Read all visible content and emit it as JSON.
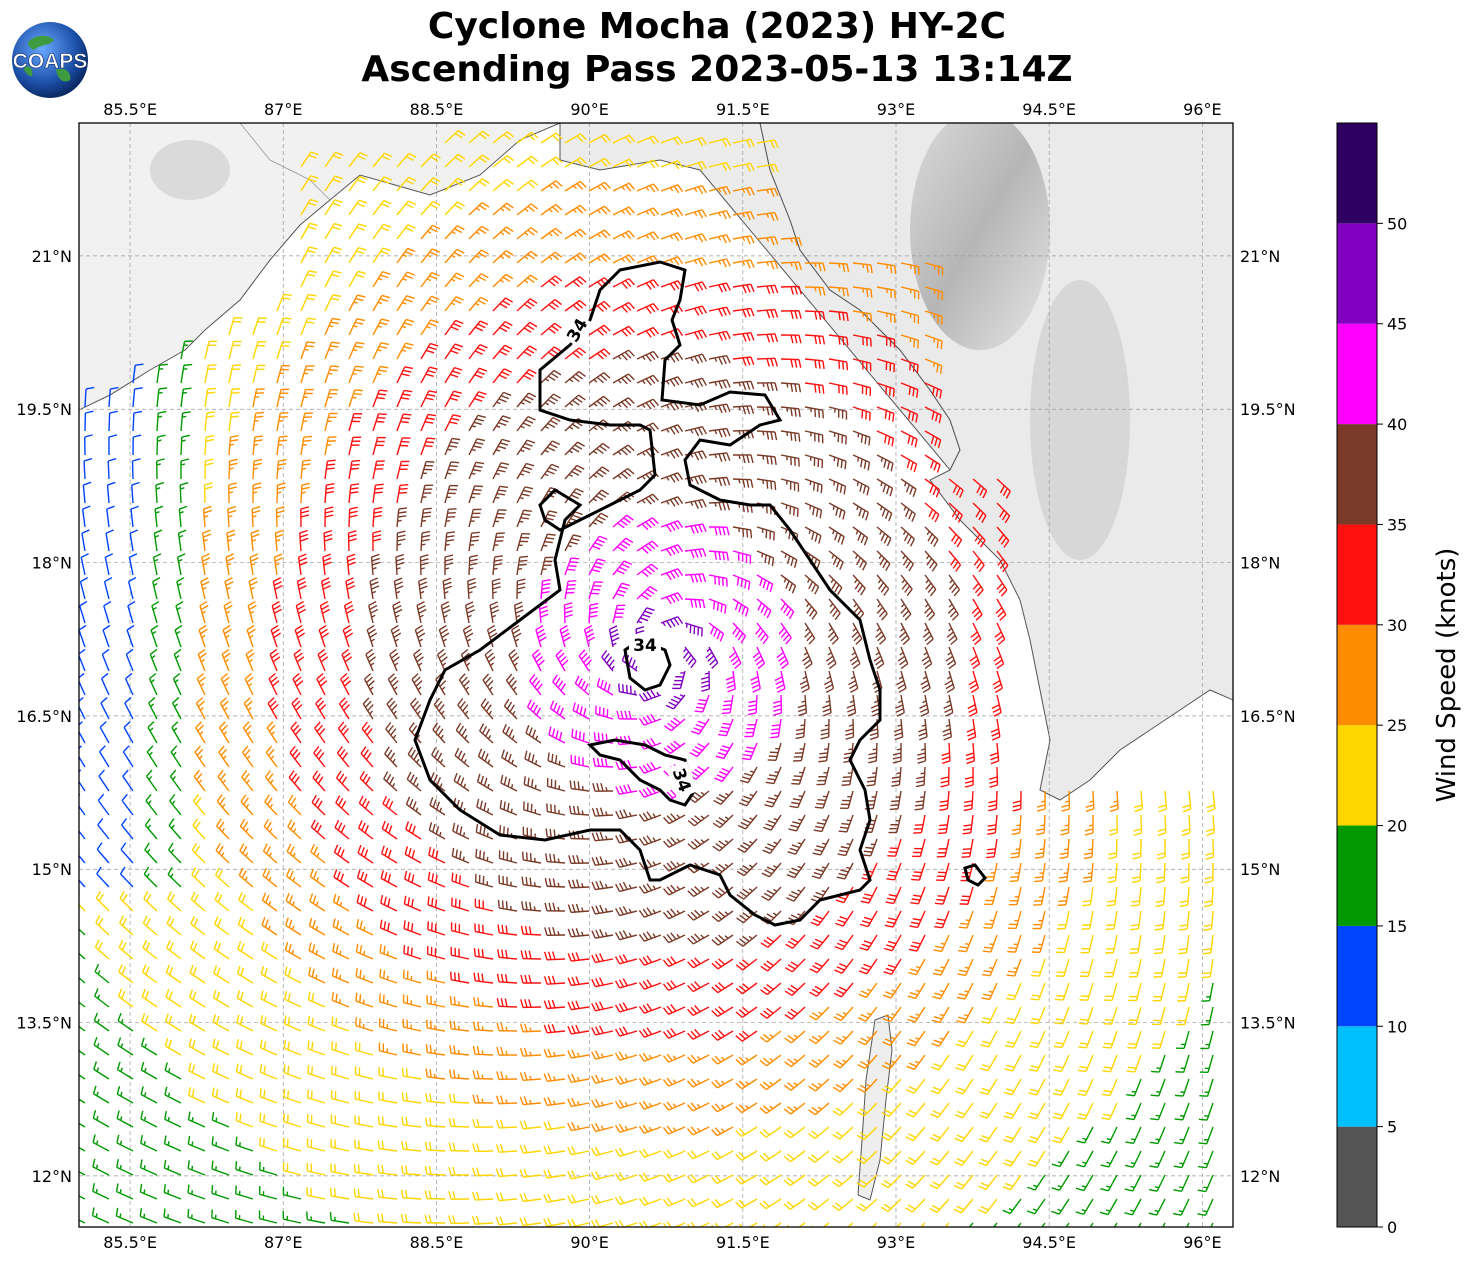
{
  "title": {
    "line1": "Cyclone Mocha (2023) HY-2C",
    "line2": "Ascending Pass 2023-05-13 13:14Z"
  },
  "logo": {
    "text": "COAPS",
    "icon": "globe-logo-icon"
  },
  "map": {
    "lon_ticks": [
      "85.5°E",
      "87°E",
      "88.5°E",
      "90°E",
      "91.5°E",
      "93°E",
      "94.5°E",
      "96°E"
    ],
    "lat_ticks": [
      "21°N",
      "19.5°N",
      "18°N",
      "16.5°N",
      "15°N",
      "13.5°N",
      "12°N"
    ],
    "lon_range": [
      85.0,
      96.3
    ],
    "lat_range": [
      11.5,
      22.3
    ],
    "gridlines": true,
    "contour_label": "34",
    "storm_center": {
      "lon": 90.7,
      "lat": 17.1
    }
  },
  "colorbar": {
    "title": "Wind Speed (knots)",
    "tick_labels": [
      "0",
      "5",
      "10",
      "15",
      "20",
      "25",
      "30",
      "35",
      "40",
      "45",
      "50"
    ],
    "bins": [
      {
        "min": 0,
        "max": 5,
        "color": "#555555"
      },
      {
        "min": 5,
        "max": 10,
        "color": "#00bfff"
      },
      {
        "min": 10,
        "max": 15,
        "color": "#0044ff"
      },
      {
        "min": 15,
        "max": 20,
        "color": "#009900"
      },
      {
        "min": 20,
        "max": 25,
        "color": "#ffd500"
      },
      {
        "min": 25,
        "max": 30,
        "color": "#ff8c00"
      },
      {
        "min": 30,
        "max": 35,
        "color": "#ff1010"
      },
      {
        "min": 35,
        "max": 40,
        "color": "#7a3a28"
      },
      {
        "min": 40,
        "max": 45,
        "color": "#ff00ff"
      },
      {
        "min": 45,
        "max": 50,
        "color": "#8000c0"
      },
      {
        "min": 50,
        "max": 55,
        "color": "#2e0060"
      }
    ]
  }
}
